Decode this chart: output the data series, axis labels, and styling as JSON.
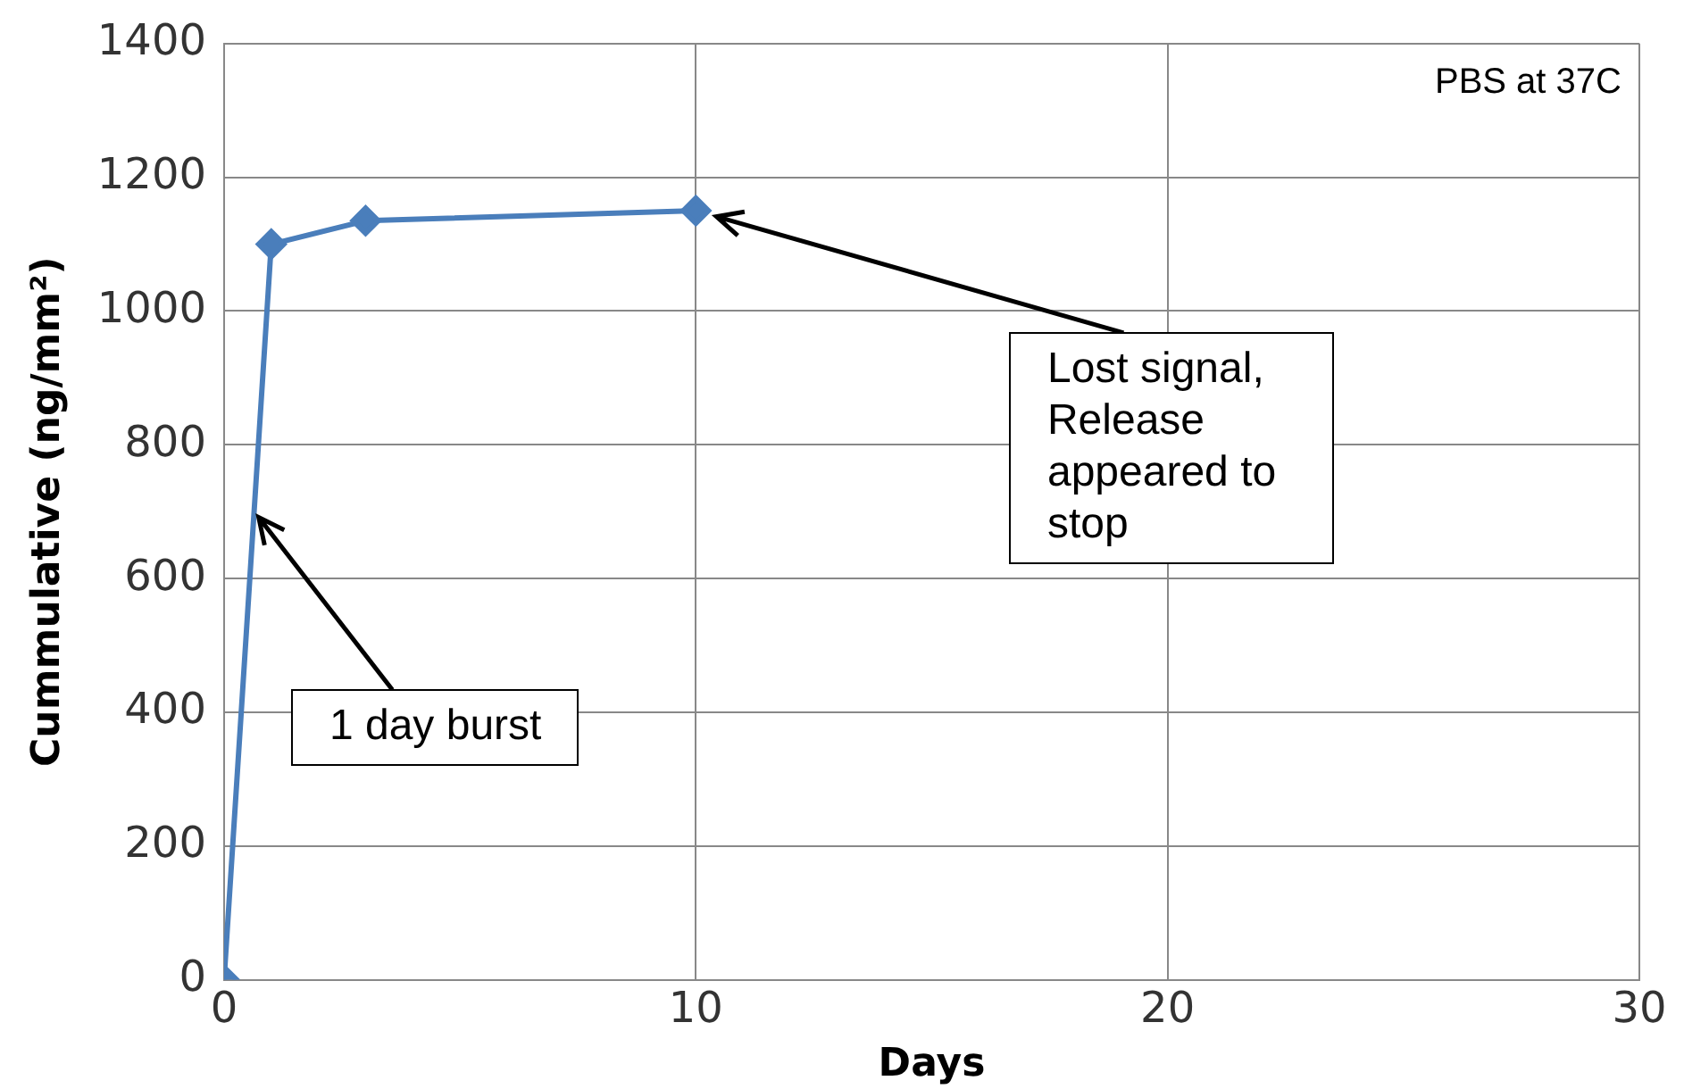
{
  "chart_data": {
    "type": "line",
    "xlabel": "Days",
    "ylabel": "Cummulative (ng/mm²)",
    "x": [
      0,
      1,
      3,
      10
    ],
    "series": [
      {
        "color": "#4a7ebb",
        "values": [
          0,
          1100,
          1135,
          1150
        ]
      }
    ],
    "xlim": [
      0,
      30
    ],
    "xticks": [
      0,
      10,
      20,
      30
    ],
    "ylim": [
      0,
      1400
    ],
    "yticks": [
      0,
      200,
      400,
      600,
      800,
      1000,
      1200,
      1400
    ],
    "grid": true,
    "legend": false,
    "marker": "diamond",
    "line_style": "solid",
    "annotations": [
      "PBS at 37C",
      {
        "text": "1 day burst",
        "x": 0.64,
        "y": 700
      },
      "Lost signal, Release appeared to stop"
    ]
  }
}
